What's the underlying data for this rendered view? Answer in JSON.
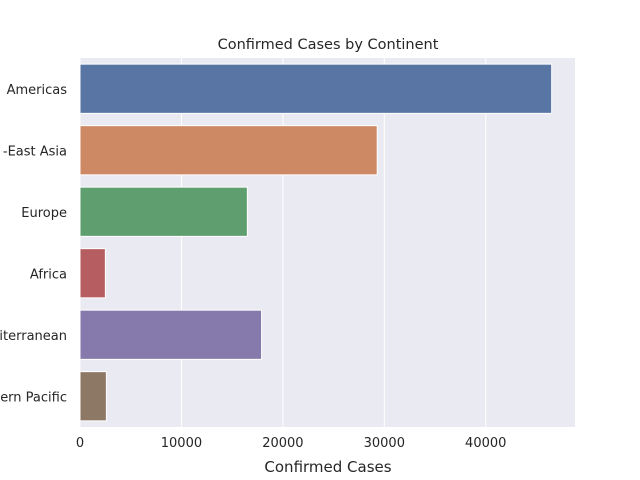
{
  "chart_data": {
    "type": "bar",
    "orientation": "horizontal",
    "title": "Confirmed Cases by Continent",
    "xlabel": "Confirmed Cases",
    "ylabel": "",
    "categories": [
      "Americas",
      "-East Asia",
      "Europe",
      "Africa",
      "iterranean",
      "ern Pacific"
    ],
    "values": [
      46500,
      29300,
      16500,
      2500,
      17900,
      2600
    ],
    "xlim": [
      0,
      48800
    ],
    "xticks": [
      0,
      10000,
      20000,
      30000,
      40000
    ],
    "xtick_labels": [
      "0",
      "10000",
      "20000",
      "30000",
      "40000"
    ],
    "grid": true,
    "background": "#EAEAF2",
    "colors": [
      "#5875A4",
      "#CC8963",
      "#5F9E6E",
      "#B55D60",
      "#857AAB",
      "#8D7866"
    ]
  }
}
